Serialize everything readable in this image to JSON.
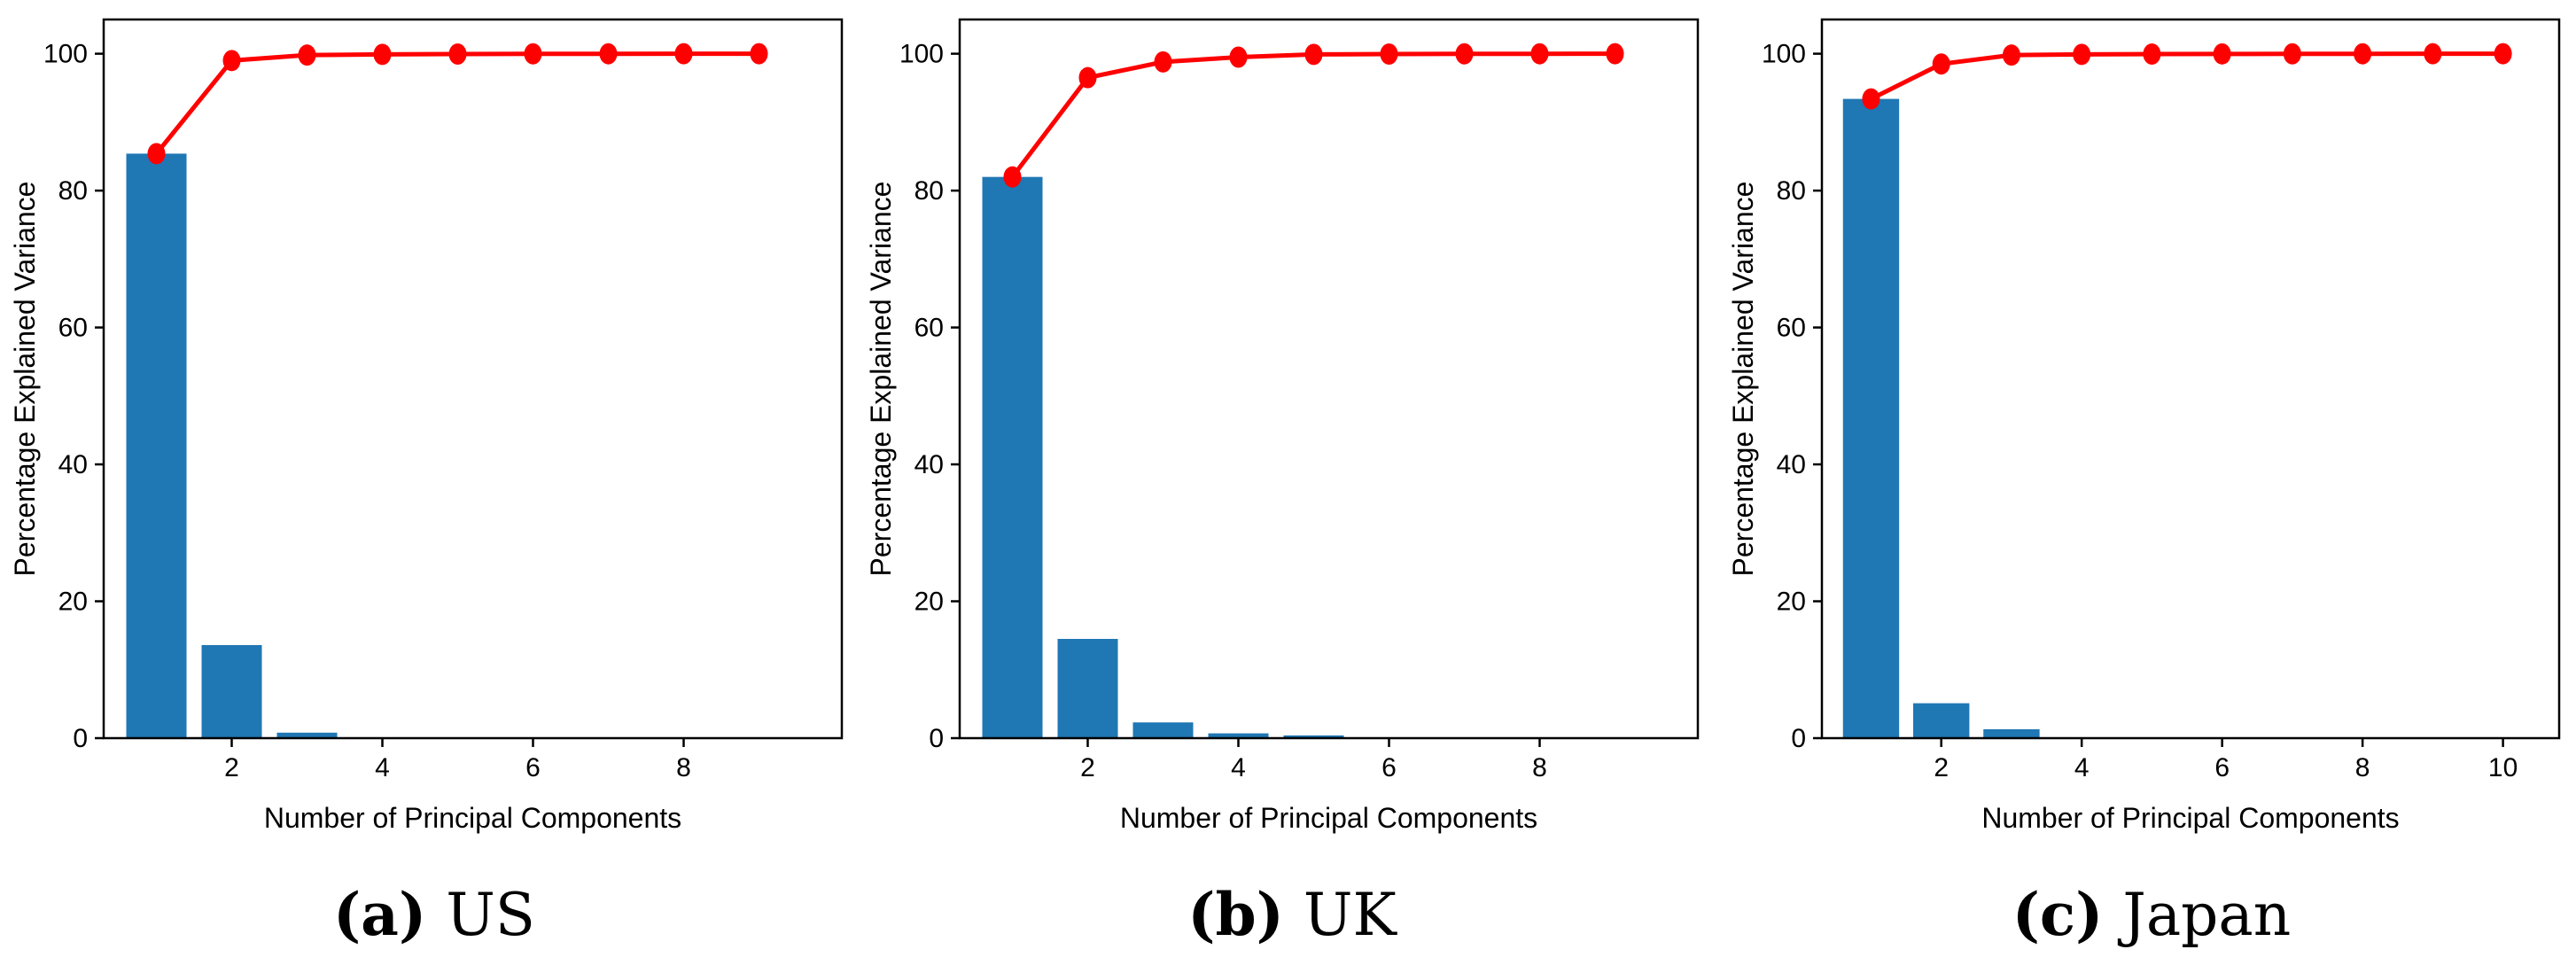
{
  "colors": {
    "bar": "#1f77b4",
    "line": "#ff0000",
    "axis": "#000000"
  },
  "chart_data": [
    {
      "type": "bar",
      "caption_letter": "(a)",
      "caption_text": "US",
      "xlabel": "Number of Principal Components",
      "ylabel": "Percentage Explained Variance",
      "x": [
        1,
        2,
        3,
        4,
        5,
        6,
        7,
        8,
        9
      ],
      "values": [
        85.4,
        13.6,
        0.8,
        0.1,
        0.05,
        0.03,
        0.02,
        0.01,
        0.01
      ],
      "cumulative": [
        85.4,
        99.0,
        99.8,
        99.9,
        99.95,
        99.98,
        99.99,
        100.0,
        100.0
      ],
      "xlim": [
        0.3,
        10.1
      ],
      "ylim": [
        0,
        105
      ],
      "xticks": [
        2,
        4,
        6,
        8
      ],
      "yticks": [
        0,
        20,
        40,
        60,
        80,
        100
      ],
      "grid": false
    },
    {
      "type": "bar",
      "caption_letter": "(b)",
      "caption_text": "UK",
      "xlabel": "Number of Principal Components",
      "ylabel": "Percentage Explained Variance",
      "x": [
        1,
        2,
        3,
        4,
        5,
        6,
        7,
        8,
        9
      ],
      "values": [
        82.0,
        14.5,
        2.3,
        0.7,
        0.4,
        0.05,
        0.03,
        0.01,
        0.01
      ],
      "cumulative": [
        82.0,
        96.5,
        98.8,
        99.5,
        99.9,
        99.95,
        99.98,
        99.99,
        100.0
      ],
      "xlim": [
        0.3,
        10.1
      ],
      "ylim": [
        0,
        105
      ],
      "xticks": [
        2,
        4,
        6,
        8
      ],
      "yticks": [
        0,
        20,
        40,
        60,
        80,
        100
      ],
      "grid": false
    },
    {
      "type": "bar",
      "caption_letter": "(c)",
      "caption_text": "Japan",
      "xlabel": "Number of Principal Components",
      "ylabel": "Percentage Explained Variance",
      "x": [
        1,
        2,
        3,
        4,
        5,
        6,
        7,
        8,
        9,
        10
      ],
      "values": [
        93.4,
        5.1,
        1.3,
        0.1,
        0.05,
        0.02,
        0.01,
        0.01,
        0.005,
        0.005
      ],
      "cumulative": [
        93.4,
        98.5,
        99.8,
        99.9,
        99.95,
        99.97,
        99.98,
        99.99,
        99.995,
        100.0
      ],
      "xlim": [
        0.3,
        10.8
      ],
      "ylim": [
        0,
        105
      ],
      "xticks": [
        2,
        4,
        6,
        8,
        10
      ],
      "yticks": [
        0,
        20,
        40,
        60,
        80,
        100
      ],
      "grid": false
    }
  ]
}
